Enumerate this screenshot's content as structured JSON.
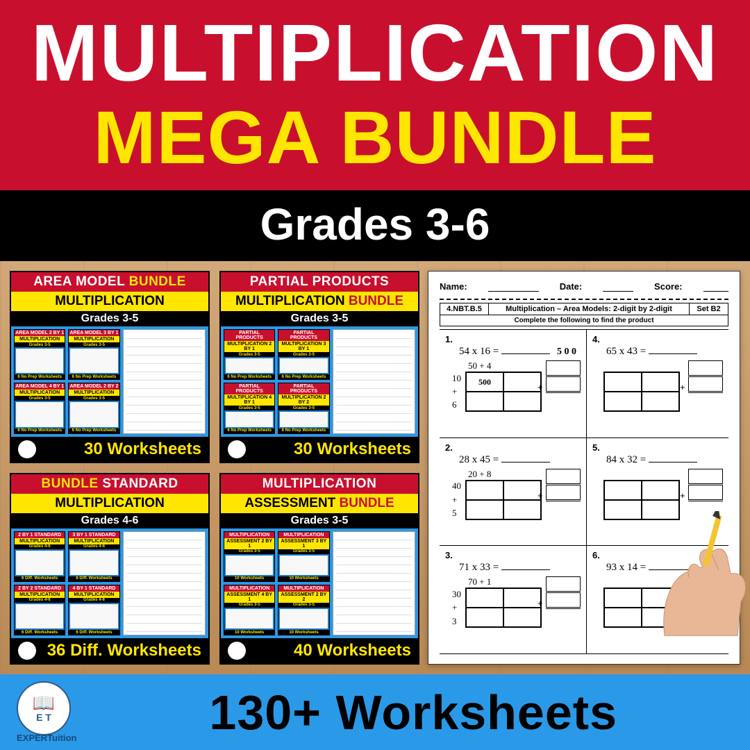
{
  "header": {
    "line1": "MULTIPLICATION",
    "line2": "MEGA BUNDLE",
    "grades": "Grades 3-6"
  },
  "colors": {
    "red": "#c8102e",
    "yellow": "#ffe600",
    "blue": "#2a99e8",
    "black": "#000000",
    "white": "#ffffff",
    "wood": "#c89968"
  },
  "cards": [
    {
      "title_a": "AREA MODEL ",
      "title_a_accent": "BUNDLE",
      "title_b": "MULTIPLICATION",
      "grades": "Grades 3-5",
      "footer": "30 Worksheets",
      "minis": [
        {
          "h1": "AREA MODEL 2 BY 1",
          "h2": "MULTIPLICATION",
          "gr": "Grades 3-5",
          "ft": "6 No Prep Worksheets"
        },
        {
          "h1": "AREA MODEL 3 BY 1",
          "h2": "MULTIPLICATION",
          "gr": "Grades 3-5",
          "ft": "6 No Prep Worksheets"
        },
        {
          "h1": "AREA MODEL 4 BY 1",
          "h2": "MULTIPLICATION",
          "gr": "Grades 3-5",
          "ft": "6 No Prep Worksheets"
        },
        {
          "h1": "AREA MODEL 2 BY 2",
          "h2": "MULTIPLICATION",
          "gr": "Grades 3-5",
          "ft": "6 No Prep Worksheets"
        }
      ]
    },
    {
      "title_a": "PARTIAL PRODUCTS",
      "title_b_pre": "MULTIPLICATION ",
      "title_b_accent": "BUNDLE",
      "grades": "Grades 3-5",
      "footer": "30 Worksheets",
      "minis": [
        {
          "h1": "PARTIAL PRODUCTS",
          "h2": "MULTIPLICATION 2 BY 1",
          "gr": "Grades 3-5",
          "ft": "6 No Prep Worksheets"
        },
        {
          "h1": "PARTIAL PRODUCTS",
          "h2": "MULTIPLICATION 3 BY 1",
          "gr": "Grades 3-5",
          "ft": "6 No Prep Worksheets"
        },
        {
          "h1": "PARTIAL PRODUCTS",
          "h2": "MULTIPLICATION 4 BY 1",
          "gr": "Grades 3-5",
          "ft": "6 No Prep Worksheets"
        },
        {
          "h1": "PARTIAL PRODUCTS",
          "h2": "MULTIPLICATION 2 BY 2",
          "gr": "Grades 3-5",
          "ft": "6 No Prep Worksheets"
        }
      ]
    },
    {
      "title_a_accent_pre": "BUNDLE",
      "title_a_post": " STANDARD",
      "title_b": "MULTIPLICATION",
      "grades": "Grades 4-6",
      "footer": "36 Diff. Worksheets",
      "minis": [
        {
          "h1": "2 BY 1 STANDARD",
          "h2": "MULTIPLICATION",
          "gr": "Grades 4-6",
          "ft": "6 Diff. Worksheets"
        },
        {
          "h1": "3 BY 1 STANDARD",
          "h2": "MULTIPLICATION",
          "gr": "Grades 4-6",
          "ft": "6 Diff. Worksheets"
        },
        {
          "h1": "2 BY 2 STANDARD",
          "h2": "MULTIPLICATION",
          "gr": "Grades 4-6",
          "ft": "6 Diff. Worksheets"
        },
        {
          "h1": "4 BY 1 STANDARD",
          "h2": "MULTIPLICATION",
          "gr": "Grades 4-6",
          "ft": "6 Diff. Worksheets"
        }
      ]
    },
    {
      "title_a": "MULTIPLICATION",
      "title_b_pre": "ASSESSMENT ",
      "title_b_accent": "BUNDLE",
      "grades": "Grades 3-5",
      "footer": "40 Worksheets",
      "minis": [
        {
          "h1": "MULTIPLICATION",
          "h2": "ASSESSMENT 2 BY 1",
          "gr": "Grades 3-5",
          "ft": "10 Worksheets"
        },
        {
          "h1": "MULTIPLICATION",
          "h2": "ASSESSMENT 3 BY 1",
          "gr": "Grades 3-5",
          "ft": "10 Worksheets"
        },
        {
          "h1": "MULTIPLICATION",
          "h2": "ASSESSMENT 4 BY 1",
          "gr": "Grades 3-5",
          "ft": "10 Worksheets"
        },
        {
          "h1": "MULTIPLICATION",
          "h2": "ASSESSMENT 2 BY 2",
          "gr": "Grades 3-5",
          "ft": "10 Worksheets"
        }
      ]
    }
  ],
  "worksheet": {
    "name_label": "Name:",
    "date_label": "Date:",
    "score_label": "Score:",
    "standard": "4.NBT.B.5",
    "title": "Multiplication – Area Models: 2-digit by 2-digit",
    "set": "Set B2",
    "subtitle": "Complete the following to find the product",
    "problems": [
      {
        "n": "1.",
        "eq": "54 x 16 = ",
        "cols": "50   +   4",
        "rows": [
          "10",
          "+",
          "6"
        ],
        "cell": "500",
        "topright": "5 0 0"
      },
      {
        "n": "4.",
        "eq": "65 x 43 = ",
        "cols": "",
        "rows": [
          "",
          "",
          ""
        ],
        "cell": ""
      },
      {
        "n": "2.",
        "eq": "28 x 45 = ",
        "cols": "20   +   8",
        "rows": [
          "40",
          "+",
          "5"
        ],
        "cell": ""
      },
      {
        "n": "5.",
        "eq": "84 x 32 = ",
        "cols": "",
        "rows": [
          "",
          "",
          ""
        ],
        "cell": ""
      },
      {
        "n": "3.",
        "eq": "71 x 33 = ",
        "cols": "70   +   1",
        "rows": [
          "30",
          "+",
          "3"
        ],
        "cell": ""
      },
      {
        "n": "6.",
        "eq": "93 x 14 = ",
        "cols": "",
        "rows": [
          "",
          "",
          ""
        ],
        "cell": ""
      }
    ]
  },
  "bottom": {
    "brand": "EXPERTuition",
    "text": "130+ Worksheets"
  }
}
